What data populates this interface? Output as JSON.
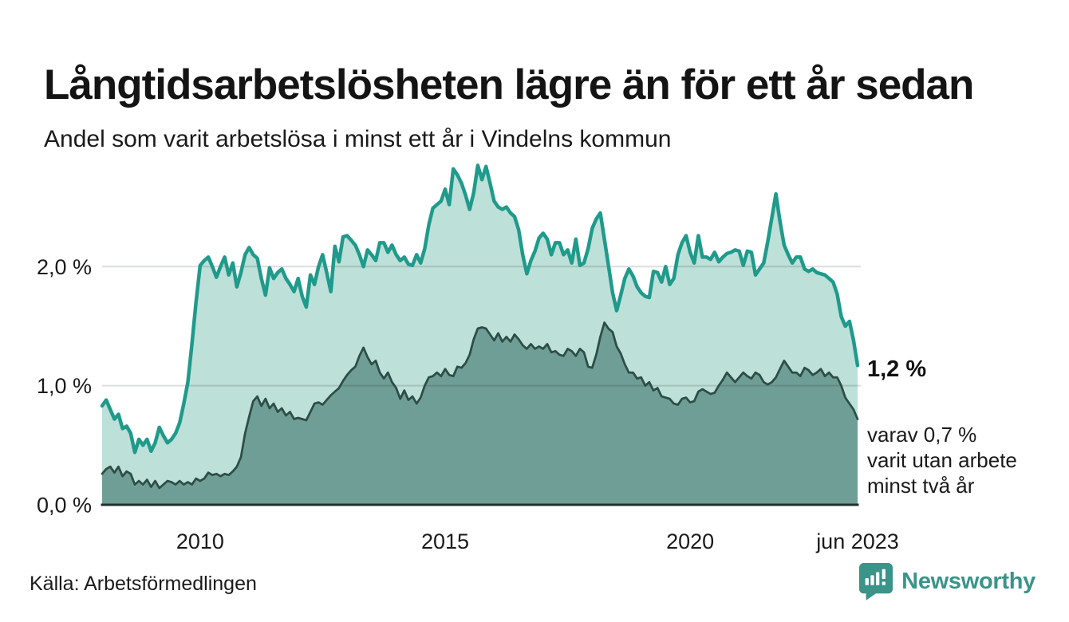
{
  "header": {
    "title": "Långtidsarbetslösheten lägre än för ett år sedan",
    "subtitle": "Andel som varit arbetslösa i minst ett år i Vindelns kommun"
  },
  "footer": {
    "source": "Källa: Arbetsförmedlingen",
    "brand": "Newsworthy"
  },
  "colors": {
    "brand_teal": "#3a948a",
    "line_one_year": "#1f9a8b",
    "fill_one_year": "#bde0d9",
    "line_two_years": "#2d4d47",
    "fill_two_years": "#6f9e96",
    "baseline": "#20302c"
  },
  "chart_data": {
    "type": "area",
    "title": "Långtidsarbetslösheten lägre än för ett år sedan",
    "subtitle": "Andel som varit arbetslösa i minst ett år i Vindelns kommun",
    "unit": "%",
    "frequency": "monthly",
    "x_start": "2008-01",
    "x_end": "2023-06",
    "ylim": [
      0,
      3.0
    ],
    "grid": "horizontal",
    "legend_position": "none",
    "y_ticks": [
      {
        "value": 2.0,
        "label": "2,0 %"
      },
      {
        "value": 1.0,
        "label": "1,0 %"
      },
      {
        "value": 0.0,
        "label": "0,0 %"
      }
    ],
    "x_ticks": [
      {
        "label": "2010",
        "month_index": 24
      },
      {
        "label": "2015",
        "month_index": 84
      },
      {
        "label": "2020",
        "month_index": 144
      },
      {
        "label": "jun 2023",
        "month_index": 185
      }
    ],
    "series": [
      {
        "name": "Andel som varit arbetslösa i minst ett år",
        "color": "#1f9a8b",
        "fill": "#bde0d9",
        "stroke_width": 4.5,
        "latest_value": 1.2,
        "values": [
          0.83,
          0.88,
          0.8,
          0.72,
          0.76,
          0.64,
          0.66,
          0.6,
          0.44,
          0.55,
          0.5,
          0.55,
          0.45,
          0.52,
          0.65,
          0.58,
          0.52,
          0.55,
          0.6,
          0.69,
          0.85,
          1.03,
          1.35,
          1.7,
          2.01,
          2.05,
          2.08,
          2.0,
          1.91,
          2.0,
          2.08,
          1.93,
          2.03,
          1.83,
          1.95,
          2.1,
          2.16,
          2.1,
          2.07,
          1.9,
          1.76,
          1.99,
          1.9,
          1.95,
          1.98,
          1.9,
          1.85,
          1.79,
          1.9,
          1.75,
          1.66,
          1.93,
          1.85,
          2.0,
          2.1,
          1.95,
          1.79,
          2.17,
          2.04,
          2.25,
          2.26,
          2.22,
          2.18,
          2.1,
          2.0,
          2.14,
          2.1,
          2.05,
          2.2,
          2.2,
          2.12,
          2.18,
          2.1,
          2.05,
          2.08,
          2.02,
          2.01,
          2.1,
          2.03,
          2.15,
          2.35,
          2.49,
          2.52,
          2.55,
          2.65,
          2.52,
          2.82,
          2.77,
          2.7,
          2.6,
          2.48,
          2.62,
          2.85,
          2.73,
          2.84,
          2.7,
          2.55,
          2.5,
          2.48,
          2.5,
          2.45,
          2.42,
          2.31,
          2.1,
          1.94,
          2.05,
          2.13,
          2.24,
          2.28,
          2.23,
          2.1,
          2.2,
          2.2,
          2.1,
          2.14,
          2.03,
          2.23,
          2.01,
          2.03,
          2.15,
          2.32,
          2.4,
          2.45,
          2.23,
          2.01,
          1.78,
          1.63,
          1.76,
          1.9,
          1.98,
          1.92,
          1.83,
          1.78,
          1.75,
          1.74,
          1.96,
          1.95,
          1.87,
          2.0,
          1.85,
          1.9,
          2.1,
          2.2,
          2.26,
          2.12,
          2.03,
          2.26,
          2.08,
          2.08,
          2.06,
          2.12,
          2.04,
          2.08,
          2.11,
          2.12,
          2.14,
          2.13,
          2.01,
          2.13,
          2.12,
          1.93,
          1.98,
          2.03,
          2.21,
          2.41,
          2.61,
          2.38,
          2.18,
          2.1,
          2.03,
          2.08,
          2.08,
          1.98,
          1.96,
          1.98,
          1.95,
          1.94,
          1.93,
          1.9,
          1.87,
          1.77,
          1.58,
          1.5,
          1.54,
          1.38,
          1.17
        ]
      },
      {
        "name": "Varav arbetslösa minst två år",
        "color": "#2d4d47",
        "fill": "#6f9e96",
        "stroke_width": 2.75,
        "latest_value": 0.7,
        "values": [
          0.26,
          0.3,
          0.32,
          0.27,
          0.32,
          0.24,
          0.28,
          0.26,
          0.17,
          0.2,
          0.17,
          0.21,
          0.15,
          0.2,
          0.14,
          0.17,
          0.2,
          0.19,
          0.17,
          0.2,
          0.17,
          0.19,
          0.17,
          0.22,
          0.2,
          0.22,
          0.27,
          0.25,
          0.26,
          0.24,
          0.26,
          0.25,
          0.28,
          0.32,
          0.4,
          0.6,
          0.74,
          0.87,
          0.91,
          0.83,
          0.89,
          0.81,
          0.85,
          0.78,
          0.81,
          0.75,
          0.78,
          0.72,
          0.73,
          0.72,
          0.71,
          0.78,
          0.85,
          0.86,
          0.84,
          0.88,
          0.92,
          0.95,
          0.98,
          1.04,
          1.09,
          1.13,
          1.16,
          1.25,
          1.32,
          1.24,
          1.18,
          1.21,
          1.11,
          1.06,
          1.11,
          1.03,
          0.98,
          0.89,
          0.96,
          0.88,
          0.91,
          0.85,
          0.9,
          1.0,
          1.07,
          1.08,
          1.11,
          1.08,
          1.14,
          1.09,
          1.08,
          1.16,
          1.15,
          1.19,
          1.26,
          1.39,
          1.48,
          1.49,
          1.48,
          1.43,
          1.38,
          1.44,
          1.37,
          1.41,
          1.37,
          1.43,
          1.39,
          1.34,
          1.31,
          1.35,
          1.31,
          1.33,
          1.31,
          1.35,
          1.28,
          1.29,
          1.26,
          1.25,
          1.31,
          1.29,
          1.25,
          1.31,
          1.28,
          1.16,
          1.15,
          1.26,
          1.41,
          1.53,
          1.48,
          1.45,
          1.33,
          1.27,
          1.18,
          1.11,
          1.11,
          1.06,
          1.07,
          1.0,
          1.03,
          0.96,
          0.98,
          0.91,
          0.9,
          0.89,
          0.85,
          0.84,
          0.89,
          0.9,
          0.86,
          0.87,
          0.95,
          0.97,
          0.95,
          0.93,
          0.94,
          1.0,
          1.05,
          1.11,
          1.07,
          1.03,
          1.07,
          1.11,
          1.08,
          1.06,
          1.11,
          1.09,
          1.03,
          1.01,
          1.03,
          1.07,
          1.14,
          1.21,
          1.16,
          1.11,
          1.11,
          1.08,
          1.15,
          1.13,
          1.09,
          1.11,
          1.14,
          1.08,
          1.11,
          1.07,
          1.07,
          1.0,
          0.9,
          0.85,
          0.8,
          0.72
        ]
      }
    ],
    "annotations": {
      "latest": {
        "text": "1,2 %"
      },
      "secondary_lines": [
        "varav 0,7 %",
        "varit utan arbete",
        "minst två år"
      ]
    }
  }
}
